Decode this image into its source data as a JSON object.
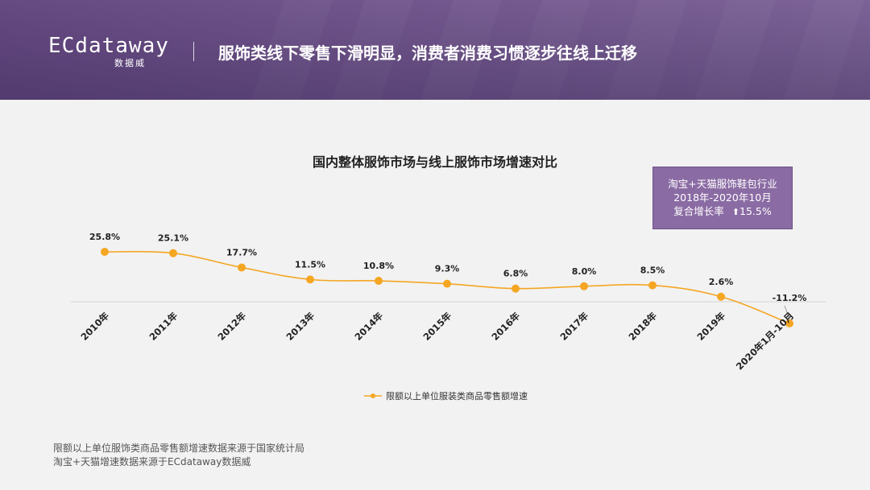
{
  "header": {
    "logo_main": "ECdataway",
    "logo_sub": "数据威",
    "title": "服饰类线下零售下滑明显，消费者消费习惯逐步往线上迁移"
  },
  "info_box": {
    "line1": "淘宝+天猫服饰鞋包行业",
    "line2": "2018年-2020年10月",
    "line3_label": "复合增长率",
    "line3_arrow": "⬆",
    "line3_value": "15.5%"
  },
  "source_note": {
    "line1": "限额以上单位服饰类商品零售额增速数据来源于国家统计局",
    "line2": "淘宝+天猫增速数据来源于ECdataway数据威"
  },
  "colors": {
    "line": "#f5a623",
    "header": "#7a5f96",
    "info_box": "#8a6ba3"
  },
  "chart_data": {
    "type": "line",
    "title": "国内整体服饰市场与线上服饰市场增速对比",
    "categories": [
      "2010年",
      "2011年",
      "2012年",
      "2013年",
      "2014年",
      "2015年",
      "2016年",
      "2017年",
      "2018年",
      "2019年",
      "2020年1月-10月"
    ],
    "series": [
      {
        "name": "限额以上单位服装类商品零售额增速",
        "values": [
          25.8,
          25.1,
          17.7,
          11.5,
          10.8,
          9.3,
          6.8,
          8.0,
          8.5,
          2.6,
          -11.2
        ],
        "data_labels": [
          "25.8%",
          "25.1%",
          "17.7%",
          "11.5%",
          "10.8%",
          "9.3%",
          "6.8%",
          "8.0%",
          "8.5%",
          "2.6%",
          "-11.2%"
        ]
      }
    ],
    "ylim": [
      -12,
      27
    ],
    "legend_position": "bottom",
    "grid": false
  }
}
